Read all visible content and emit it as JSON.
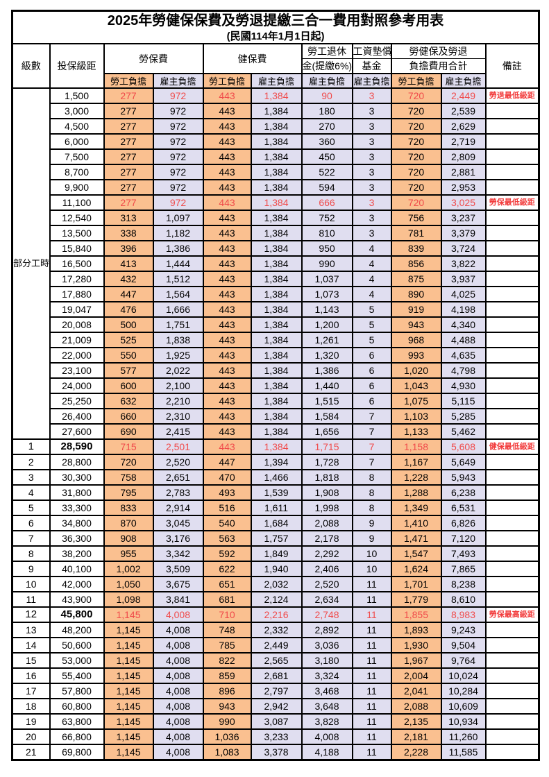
{
  "title": "2025年勞健保保費及勞退提繳三合一費用對照參考用表",
  "subtitle": "(民國114年1月1日起)",
  "header": {
    "level": "級數",
    "bracket": "投保級距",
    "labor_ins": "勞保費",
    "health_ins": "健保費",
    "pension_line1": "勞工退休",
    "pension_line2": "金(提繳6%)",
    "wage_fund_line1": "工資墊償",
    "wage_fund_line2": "基金",
    "total_line1": "勞健保及勞退",
    "total_line2": "負擔費用合計",
    "remark": "備註",
    "employee": "勞工負擔",
    "employer": "雇主負擔"
  },
  "colors": {
    "employee_bg": "#FAC090",
    "employer_bg": "#E0DEF0",
    "remark_red": "#F23C3C",
    "highlight_red": "#F04A4A"
  },
  "part_time_label": "部分工時",
  "part_time_span": 23,
  "rows": [
    {
      "lv": "",
      "b": "1,500",
      "v": [
        "277",
        "972",
        "443",
        "1,384",
        "90",
        "3",
        "720",
        "2,449"
      ],
      "r": "勞退最低級距",
      "hl": true,
      "em": false
    },
    {
      "lv": "",
      "b": "3,000",
      "v": [
        "277",
        "972",
        "443",
        "1,384",
        "180",
        "3",
        "720",
        "2,539"
      ],
      "r": "",
      "hl": false,
      "em": false
    },
    {
      "lv": "",
      "b": "4,500",
      "v": [
        "277",
        "972",
        "443",
        "1,384",
        "270",
        "3",
        "720",
        "2,629"
      ],
      "r": "",
      "hl": false,
      "em": false
    },
    {
      "lv": "",
      "b": "6,000",
      "v": [
        "277",
        "972",
        "443",
        "1,384",
        "360",
        "3",
        "720",
        "2,719"
      ],
      "r": "",
      "hl": false,
      "em": false
    },
    {
      "lv": "",
      "b": "7,500",
      "v": [
        "277",
        "972",
        "443",
        "1,384",
        "450",
        "3",
        "720",
        "2,809"
      ],
      "r": "",
      "hl": false,
      "em": false
    },
    {
      "lv": "",
      "b": "8,700",
      "v": [
        "277",
        "972",
        "443",
        "1,384",
        "522",
        "3",
        "720",
        "2,881"
      ],
      "r": "",
      "hl": false,
      "em": false
    },
    {
      "lv": "",
      "b": "9,900",
      "v": [
        "277",
        "972",
        "443",
        "1,384",
        "594",
        "3",
        "720",
        "2,953"
      ],
      "r": "",
      "hl": false,
      "em": false
    },
    {
      "lv": "",
      "b": "11,100",
      "v": [
        "277",
        "972",
        "443",
        "1,384",
        "666",
        "3",
        "720",
        "3,025"
      ],
      "r": "勞保最低級距",
      "hl": true,
      "em": false
    },
    {
      "lv": "",
      "b": "12,540",
      "v": [
        "313",
        "1,097",
        "443",
        "1,384",
        "752",
        "3",
        "756",
        "3,237"
      ],
      "r": "",
      "hl": false,
      "em": false
    },
    {
      "lv": "",
      "b": "13,500",
      "v": [
        "338",
        "1,182",
        "443",
        "1,384",
        "810",
        "3",
        "781",
        "3,379"
      ],
      "r": "",
      "hl": false,
      "em": false
    },
    {
      "lv": "",
      "b": "15,840",
      "v": [
        "396",
        "1,386",
        "443",
        "1,384",
        "950",
        "4",
        "839",
        "3,724"
      ],
      "r": "",
      "hl": false,
      "em": false
    },
    {
      "lv": "",
      "b": "16,500",
      "v": [
        "413",
        "1,444",
        "443",
        "1,384",
        "990",
        "4",
        "856",
        "3,822"
      ],
      "r": "",
      "hl": false,
      "em": false
    },
    {
      "lv": "",
      "b": "17,280",
      "v": [
        "432",
        "1,512",
        "443",
        "1,384",
        "1,037",
        "4",
        "875",
        "3,937"
      ],
      "r": "",
      "hl": false,
      "em": false
    },
    {
      "lv": "",
      "b": "17,880",
      "v": [
        "447",
        "1,564",
        "443",
        "1,384",
        "1,073",
        "4",
        "890",
        "4,025"
      ],
      "r": "",
      "hl": false,
      "em": false
    },
    {
      "lv": "",
      "b": "19,047",
      "v": [
        "476",
        "1,666",
        "443",
        "1,384",
        "1,143",
        "5",
        "919",
        "4,198"
      ],
      "r": "",
      "hl": false,
      "em": false
    },
    {
      "lv": "",
      "b": "20,008",
      "v": [
        "500",
        "1,751",
        "443",
        "1,384",
        "1,200",
        "5",
        "943",
        "4,340"
      ],
      "r": "",
      "hl": false,
      "em": false
    },
    {
      "lv": "",
      "b": "21,009",
      "v": [
        "525",
        "1,838",
        "443",
        "1,384",
        "1,261",
        "5",
        "968",
        "4,488"
      ],
      "r": "",
      "hl": false,
      "em": false
    },
    {
      "lv": "",
      "b": "22,000",
      "v": [
        "550",
        "1,925",
        "443",
        "1,384",
        "1,320",
        "6",
        "993",
        "4,635"
      ],
      "r": "",
      "hl": false,
      "em": false
    },
    {
      "lv": "",
      "b": "23,100",
      "v": [
        "577",
        "2,022",
        "443",
        "1,384",
        "1,386",
        "6",
        "1,020",
        "4,798"
      ],
      "r": "",
      "hl": false,
      "em": false
    },
    {
      "lv": "",
      "b": "24,000",
      "v": [
        "600",
        "2,100",
        "443",
        "1,384",
        "1,440",
        "6",
        "1,043",
        "4,930"
      ],
      "r": "",
      "hl": false,
      "em": false
    },
    {
      "lv": "",
      "b": "25,250",
      "v": [
        "632",
        "2,210",
        "443",
        "1,384",
        "1,515",
        "6",
        "1,075",
        "5,115"
      ],
      "r": "",
      "hl": false,
      "em": false
    },
    {
      "lv": "",
      "b": "26,400",
      "v": [
        "660",
        "2,310",
        "443",
        "1,384",
        "1,584",
        "7",
        "1,103",
        "5,285"
      ],
      "r": "",
      "hl": false,
      "em": false
    },
    {
      "lv": "",
      "b": "27,600",
      "v": [
        "690",
        "2,415",
        "443",
        "1,384",
        "1,656",
        "7",
        "1,133",
        "5,462"
      ],
      "r": "",
      "hl": false,
      "em": false
    },
    {
      "lv": "1",
      "b": "28,590",
      "v": [
        "715",
        "2,501",
        "443",
        "1,384",
        "1,715",
        "7",
        "1,158",
        "5,608"
      ],
      "r": "健保最低級距",
      "hl": true,
      "em": true
    },
    {
      "lv": "2",
      "b": "28,800",
      "v": [
        "720",
        "2,520",
        "447",
        "1,394",
        "1,728",
        "7",
        "1,167",
        "5,649"
      ],
      "r": "",
      "hl": false,
      "em": false
    },
    {
      "lv": "3",
      "b": "30,300",
      "v": [
        "758",
        "2,651",
        "470",
        "1,466",
        "1,818",
        "8",
        "1,228",
        "5,943"
      ],
      "r": "",
      "hl": false,
      "em": false
    },
    {
      "lv": "4",
      "b": "31,800",
      "v": [
        "795",
        "2,783",
        "493",
        "1,539",
        "1,908",
        "8",
        "1,288",
        "6,238"
      ],
      "r": "",
      "hl": false,
      "em": false
    },
    {
      "lv": "5",
      "b": "33,300",
      "v": [
        "833",
        "2,914",
        "516",
        "1,611",
        "1,998",
        "8",
        "1,349",
        "6,531"
      ],
      "r": "",
      "hl": false,
      "em": false
    },
    {
      "lv": "6",
      "b": "34,800",
      "v": [
        "870",
        "3,045",
        "540",
        "1,684",
        "2,088",
        "9",
        "1,410",
        "6,826"
      ],
      "r": "",
      "hl": false,
      "em": false
    },
    {
      "lv": "7",
      "b": "36,300",
      "v": [
        "908",
        "3,176",
        "563",
        "1,757",
        "2,178",
        "9",
        "1,471",
        "7,120"
      ],
      "r": "",
      "hl": false,
      "em": false
    },
    {
      "lv": "8",
      "b": "38,200",
      "v": [
        "955",
        "3,342",
        "592",
        "1,849",
        "2,292",
        "10",
        "1,547",
        "7,493"
      ],
      "r": "",
      "hl": false,
      "em": false
    },
    {
      "lv": "9",
      "b": "40,100",
      "v": [
        "1,002",
        "3,509",
        "622",
        "1,940",
        "2,406",
        "10",
        "1,624",
        "7,865"
      ],
      "r": "",
      "hl": false,
      "em": false
    },
    {
      "lv": "10",
      "b": "42,000",
      "v": [
        "1,050",
        "3,675",
        "651",
        "2,032",
        "2,520",
        "11",
        "1,701",
        "8,238"
      ],
      "r": "",
      "hl": false,
      "em": false
    },
    {
      "lv": "11",
      "b": "43,900",
      "v": [
        "1,098",
        "3,841",
        "681",
        "2,124",
        "2,634",
        "11",
        "1,779",
        "8,610"
      ],
      "r": "",
      "hl": false,
      "em": false
    },
    {
      "lv": "12",
      "b": "45,800",
      "v": [
        "1,145",
        "4,008",
        "710",
        "2,216",
        "2,748",
        "11",
        "1,855",
        "8,983"
      ],
      "r": "勞保最高級距",
      "hl": true,
      "em": true
    },
    {
      "lv": "13",
      "b": "48,200",
      "v": [
        "1,145",
        "4,008",
        "748",
        "2,332",
        "2,892",
        "11",
        "1,893",
        "9,243"
      ],
      "r": "",
      "hl": false,
      "em": false
    },
    {
      "lv": "14",
      "b": "50,600",
      "v": [
        "1,145",
        "4,008",
        "785",
        "2,449",
        "3,036",
        "11",
        "1,930",
        "9,504"
      ],
      "r": "",
      "hl": false,
      "em": false
    },
    {
      "lv": "15",
      "b": "53,000",
      "v": [
        "1,145",
        "4,008",
        "822",
        "2,565",
        "3,180",
        "11",
        "1,967",
        "9,764"
      ],
      "r": "",
      "hl": false,
      "em": false
    },
    {
      "lv": "16",
      "b": "55,400",
      "v": [
        "1,145",
        "4,008",
        "859",
        "2,681",
        "3,324",
        "11",
        "2,004",
        "10,024"
      ],
      "r": "",
      "hl": false,
      "em": false
    },
    {
      "lv": "17",
      "b": "57,800",
      "v": [
        "1,145",
        "4,008",
        "896",
        "2,797",
        "3,468",
        "11",
        "2,041",
        "10,284"
      ],
      "r": "",
      "hl": false,
      "em": false
    },
    {
      "lv": "18",
      "b": "60,800",
      "v": [
        "1,145",
        "4,008",
        "943",
        "2,942",
        "3,648",
        "11",
        "2,088",
        "10,609"
      ],
      "r": "",
      "hl": false,
      "em": false
    },
    {
      "lv": "19",
      "b": "63,800",
      "v": [
        "1,145",
        "4,008",
        "990",
        "3,087",
        "3,828",
        "11",
        "2,135",
        "10,934"
      ],
      "r": "",
      "hl": false,
      "em": false
    },
    {
      "lv": "20",
      "b": "66,800",
      "v": [
        "1,145",
        "4,008",
        "1,036",
        "3,233",
        "4,008",
        "11",
        "2,181",
        "11,260"
      ],
      "r": "",
      "hl": false,
      "em": false
    },
    {
      "lv": "21",
      "b": "69,800",
      "v": [
        "1,145",
        "4,008",
        "1,083",
        "3,378",
        "4,188",
        "11",
        "2,228",
        "11,585"
      ],
      "r": "",
      "hl": false,
      "em": false
    }
  ]
}
